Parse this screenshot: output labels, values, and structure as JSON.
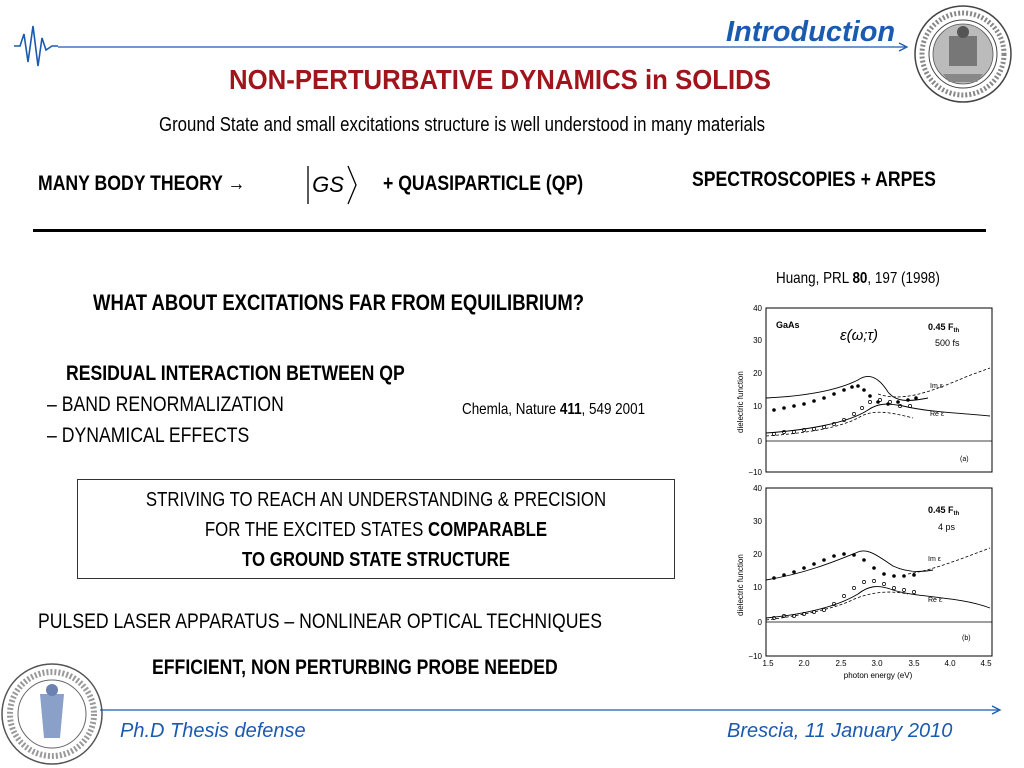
{
  "header": {
    "title": "Introduction"
  },
  "slide": {
    "title": "NON-PERTURBATIVE DYNAMICS in SOLIDS",
    "subtitle": "Ground State and small excitations structure is well understood in many materials",
    "mbt_label": "MANY BODY THEORY",
    "mbt_arrow": "→",
    "ket_symbol": "GS",
    "qp_label": "+ QUASIPARTICLE (QP)",
    "spectroscopies": "SPECTROSCOPIES + ARPES",
    "question": "WHAT ABOUT EXCITATIONS FAR FROM EQUILIBRIUM?",
    "residual_title": "RESIDUAL INTERACTION BETWEEN QP",
    "residual_items": [
      "– BAND RENORMALIZATION",
      "– DYNAMICAL EFFECTS"
    ],
    "citation_chemla": {
      "prefix": "Chemla, Nature ",
      "volume": "411",
      "suffix": ", 549 2001"
    },
    "citation_huang": {
      "prefix": "Huang, PRL ",
      "volume": "80",
      "suffix": ", 197 (1998)"
    },
    "box": {
      "line1": "STRIVING TO REACH AN UNDERSTANDING & PRECISION",
      "line2_normal": "FOR THE EXCITED STATES ",
      "line2_bold": "COMPARABLE",
      "line3": "TO GROUND STATE STRUCTURE"
    },
    "pulsed": "PULSED LASER APPARATUS – NONLINEAR OPTICAL TECHNIQUES",
    "probe": "EFFICIENT, NON PERTURBING PROBE NEEDED"
  },
  "figure": {
    "formula": "ε(ω;τ)",
    "y_axis_label": "dielectric function",
    "x_axis_label": "photon energy (eV)",
    "x_ticks": [
      "1.5",
      "2.0",
      "2.5",
      "3.0",
      "3.5",
      "4.0",
      "4.5"
    ],
    "panel_a": {
      "material": "GaAs",
      "fluence": "0.45 F",
      "fluence_sub": "th",
      "delay": "500 fs",
      "im_label": "Im ε",
      "re_label": "Re ε",
      "panel_label": "(a)",
      "y_ticks": [
        "40",
        "30",
        "20",
        "10",
        "0",
        "−10"
      ]
    },
    "panel_b": {
      "fluence": "0.45 F",
      "fluence_sub": "th",
      "delay": "4 ps",
      "im_label": "Im ε",
      "re_label": "Re ε",
      "panel_label": "(b)",
      "y_ticks": [
        "40",
        "30",
        "20",
        "10",
        "0",
        "−10"
      ]
    }
  },
  "footer": {
    "left": "Ph.D Thesis defense",
    "right": "Brescia, 11 January 2010"
  },
  "colors": {
    "accent_blue": "#1a5ab0",
    "title_red": "#a0151c"
  }
}
